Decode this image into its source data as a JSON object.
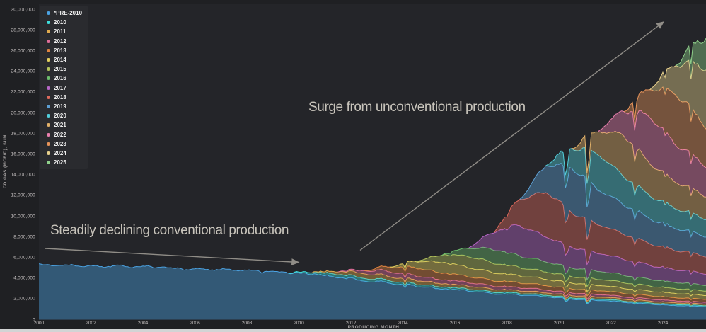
{
  "app": {
    "background": "#1f2023",
    "plot_background": "#242529",
    "text_color": "#c9c4c4",
    "annotation_color": "#c8c4bb",
    "arrow_color": "#908d87"
  },
  "chart_data": {
    "type": "area",
    "stacked": true,
    "title": "",
    "xlabel": "PRODUCING MONTH",
    "ylabel": "CD GAS (MCF/D), SUM",
    "legend_position": "top-left",
    "grid": false,
    "x_range": [
      2000,
      2025.7
    ],
    "y_range": [
      0,
      30000000
    ],
    "y_ticks": [
      "0",
      "2,000,000",
      "4,000,000",
      "6,000,000",
      "8,000,000",
      "10,000,000",
      "12,000,000",
      "14,000,000",
      "16,000,000",
      "18,000,000",
      "20,000,000",
      "22,000,000",
      "24,000,000",
      "26,000,000",
      "28,000,000",
      "30,000,000"
    ],
    "x_ticks": [
      "2000",
      "2002",
      "2004",
      "2006",
      "2008",
      "2010",
      "2012",
      "2014",
      "2016",
      "2018",
      "2020",
      "2022",
      "2024"
    ],
    "years": [
      2000,
      2001,
      2002,
      2003,
      2004,
      2005,
      2006,
      2007,
      2008,
      2009,
      2010,
      2011,
      2012,
      2013,
      2014,
      2015,
      2016,
      2017,
      2018,
      2019,
      2020,
      2021,
      2022,
      2023,
      2024,
      2025
    ],
    "series": [
      {
        "name": "*PRE-2010",
        "color": "#4ba3e3",
        "values": [
          5300000,
          5220000,
          5180000,
          5120000,
          5080000,
          4920000,
          4860000,
          4800000,
          4720000,
          4560000,
          4400000,
          4100000,
          3800000,
          3520000,
          3250000,
          3000000,
          2780000,
          2580000,
          2400000,
          2220000,
          2020000,
          1850000,
          1680000,
          1520000,
          1380000,
          1260000
        ]
      },
      {
        "name": "2010",
        "color": "#3edede",
        "values": [
          0,
          0,
          0,
          0,
          0,
          0,
          0,
          0,
          0,
          0,
          180000,
          300000,
          260000,
          230000,
          210000,
          190000,
          175000,
          165000,
          155000,
          145000,
          135000,
          125000,
          118000,
          112000,
          106000,
          100000
        ]
      },
      {
        "name": "2011",
        "color": "#e0aa4e",
        "values": [
          0,
          0,
          0,
          0,
          0,
          0,
          0,
          0,
          0,
          0,
          0,
          280000,
          460000,
          400000,
          360000,
          320000,
          290000,
          270000,
          250000,
          235000,
          220000,
          205000,
          190000,
          180000,
          170000,
          160000
        ]
      },
      {
        "name": "2012",
        "color": "#e06e9a",
        "values": [
          0,
          0,
          0,
          0,
          0,
          0,
          0,
          0,
          0,
          0,
          0,
          0,
          300000,
          500000,
          430000,
          380000,
          345000,
          315000,
          290000,
          270000,
          250000,
          235000,
          220000,
          205000,
          190000,
          180000
        ]
      },
      {
        "name": "2013",
        "color": "#e08440",
        "values": [
          0,
          0,
          0,
          0,
          0,
          0,
          0,
          0,
          0,
          0,
          0,
          0,
          0,
          480000,
          780000,
          660000,
          580000,
          520000,
          470000,
          430000,
          400000,
          370000,
          340000,
          320000,
          300000,
          280000
        ]
      },
      {
        "name": "2014",
        "color": "#e3cf5e",
        "values": [
          0,
          0,
          0,
          0,
          0,
          0,
          0,
          0,
          0,
          0,
          0,
          0,
          0,
          0,
          650000,
          1050000,
          880000,
          770000,
          690000,
          620000,
          570000,
          520000,
          480000,
          450000,
          420000,
          390000
        ]
      },
      {
        "name": "2015",
        "color": "#b5c45c",
        "values": [
          0,
          0,
          0,
          0,
          0,
          0,
          0,
          0,
          0,
          0,
          0,
          0,
          0,
          0,
          0,
          700000,
          1100000,
          920000,
          800000,
          710000,
          640000,
          590000,
          540000,
          500000,
          460000,
          430000
        ]
      },
      {
        "name": "2016",
        "color": "#6dbd6d",
        "values": [
          0,
          0,
          0,
          0,
          0,
          0,
          0,
          0,
          0,
          0,
          0,
          0,
          0,
          0,
          0,
          0,
          800000,
          1350000,
          1120000,
          970000,
          860000,
          780000,
          710000,
          650000,
          600000,
          560000
        ]
      },
      {
        "name": "2017",
        "color": "#b867c9",
        "values": [
          0,
          0,
          0,
          0,
          0,
          0,
          0,
          0,
          0,
          0,
          0,
          0,
          0,
          0,
          0,
          0,
          0,
          1700000,
          3000000,
          2400000,
          2000000,
          1730000,
          1530000,
          1370000,
          1240000,
          1130000
        ]
      },
      {
        "name": "2018",
        "color": "#de6a5c",
        "values": [
          0,
          0,
          0,
          0,
          0,
          0,
          0,
          0,
          0,
          0,
          0,
          0,
          0,
          0,
          0,
          0,
          0,
          0,
          2600000,
          4300000,
          3400000,
          2800000,
          2400000,
          2120000,
          1900000,
          1720000
        ]
      },
      {
        "name": "2019",
        "color": "#5d9fd3",
        "values": [
          0,
          0,
          0,
          0,
          0,
          0,
          0,
          0,
          0,
          0,
          0,
          0,
          0,
          0,
          0,
          0,
          0,
          0,
          0,
          2600000,
          4400000,
          3450000,
          2850000,
          2450000,
          2150000,
          1930000
        ]
      },
      {
        "name": "2020",
        "color": "#52cfdb",
        "values": [
          0,
          0,
          0,
          0,
          0,
          0,
          0,
          0,
          0,
          0,
          0,
          0,
          0,
          0,
          0,
          0,
          0,
          0,
          0,
          0,
          2000000,
          3400000,
          2700000,
          2250000,
          1950000,
          1730000
        ]
      },
      {
        "name": "2021",
        "color": "#e2b169",
        "values": [
          0,
          0,
          0,
          0,
          0,
          0,
          0,
          0,
          0,
          0,
          0,
          0,
          0,
          0,
          0,
          0,
          0,
          0,
          0,
          0,
          0,
          2200000,
          4000000,
          3150000,
          2600000,
          2250000
        ]
      },
      {
        "name": "2022",
        "color": "#ea7fae",
        "values": [
          0,
          0,
          0,
          0,
          0,
          0,
          0,
          0,
          0,
          0,
          0,
          0,
          0,
          0,
          0,
          0,
          0,
          0,
          0,
          0,
          0,
          0,
          2400000,
          4600000,
          3600000,
          3000000
        ]
      },
      {
        "name": "2023",
        "color": "#e8945a",
        "values": [
          0,
          0,
          0,
          0,
          0,
          0,
          0,
          0,
          0,
          0,
          0,
          0,
          0,
          0,
          0,
          0,
          0,
          0,
          0,
          0,
          0,
          0,
          0,
          2700000,
          5000000,
          3900000
        ]
      },
      {
        "name": "2024",
        "color": "#e8d18d",
        "values": [
          0,
          0,
          0,
          0,
          0,
          0,
          0,
          0,
          0,
          0,
          0,
          0,
          0,
          0,
          0,
          0,
          0,
          0,
          0,
          0,
          0,
          0,
          0,
          0,
          2900000,
          5400000
        ]
      },
      {
        "name": "2025",
        "color": "#8fd18b",
        "values": [
          0,
          0,
          0,
          0,
          0,
          0,
          0,
          0,
          0,
          0,
          0,
          0,
          0,
          0,
          0,
          0,
          0,
          0,
          0,
          0,
          0,
          0,
          0,
          0,
          0,
          2700000
        ]
      }
    ],
    "events": [
      {
        "x": 2008.6,
        "depth": 0.05,
        "width": 0.04
      },
      {
        "x": 2014.07,
        "depth": 0.1,
        "width": 0.03
      },
      {
        "x": 2018.04,
        "depth": 0.08,
        "width": 0.025
      },
      {
        "x": 2020.28,
        "depth": 0.18,
        "width": 0.05
      },
      {
        "x": 2021.12,
        "depth": 0.45,
        "width": 0.03
      },
      {
        "x": 2022.95,
        "depth": 0.3,
        "width": 0.022
      },
      {
        "x": 2024.05,
        "depth": 0.13,
        "width": 0.02
      },
      {
        "x": 2025.1,
        "depth": 0.1,
        "width": 0.02
      }
    ],
    "annotations": [
      {
        "id": "decline",
        "text": "Steadily declining conventional production"
      },
      {
        "id": "surge",
        "text": "Surge from unconventional production"
      }
    ]
  }
}
